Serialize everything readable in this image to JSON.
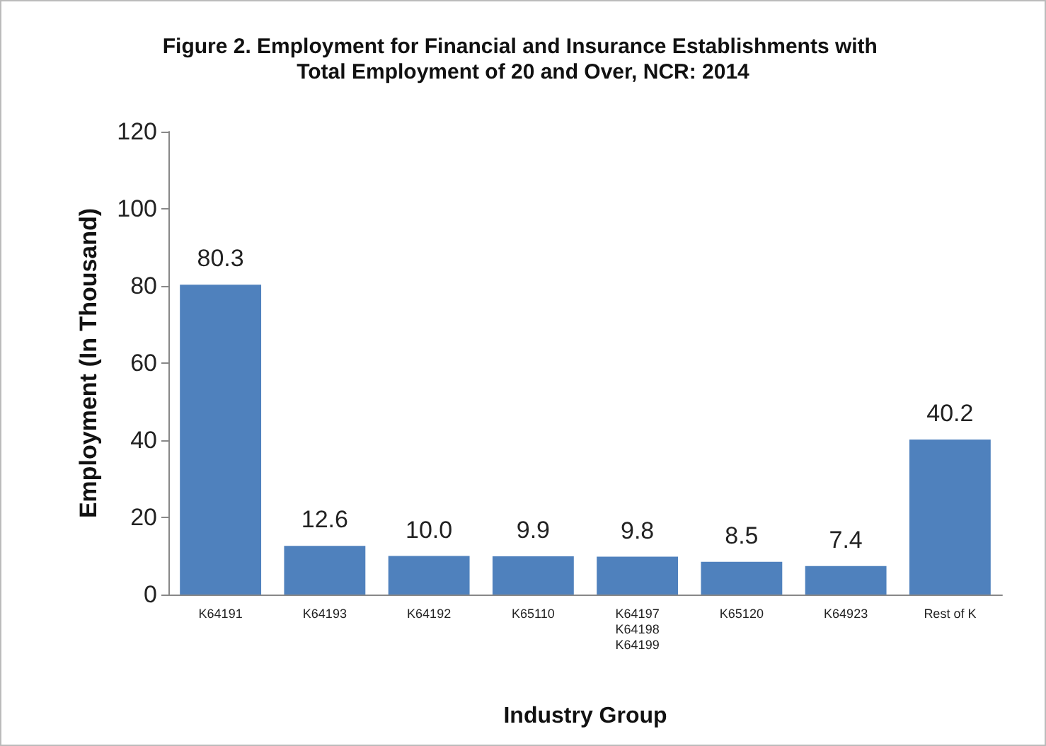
{
  "chart_data": {
    "type": "bar",
    "title": "Figure 2. Employment for Financial and Insurance Establishments with Total Employment of 20 and Over, NCR: 2014",
    "xlabel": "Industry Group",
    "ylabel": "Employment (In Thousand)",
    "categories": [
      "K64191",
      "K64193",
      "K64192",
      "K65110",
      "K64197\nK64198\nK64199",
      "K65120",
      "K64923",
      "Rest of K"
    ],
    "values": [
      80.3,
      12.6,
      10.0,
      9.9,
      9.8,
      8.5,
      7.4,
      40.2
    ],
    "value_labels": [
      "80.3",
      "12.6",
      "10.0",
      "9.9",
      "9.8",
      "8.5",
      "7.4",
      "40.2"
    ],
    "color": "#4f81bd",
    "ylim": [
      0,
      120
    ],
    "yticks": [
      0,
      20,
      40,
      60,
      80,
      100,
      120
    ]
  }
}
